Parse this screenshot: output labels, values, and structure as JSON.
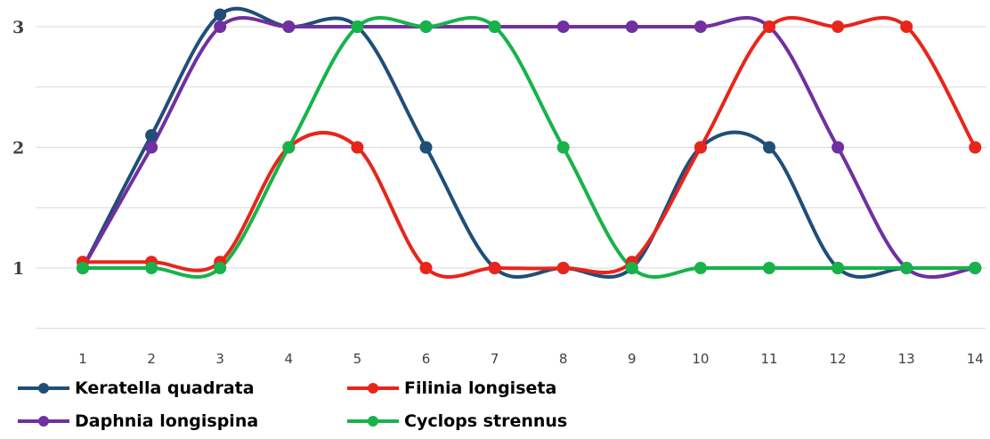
{
  "chart_data": {
    "type": "line",
    "title": "",
    "xlabel": "",
    "ylabel": "",
    "x": [
      1,
      2,
      3,
      4,
      5,
      6,
      7,
      8,
      9,
      10,
      11,
      12,
      13,
      14
    ],
    "xticks": [
      "1",
      "2",
      "3",
      "4",
      "5",
      "6",
      "7",
      "8",
      "9",
      "10",
      "11",
      "12",
      "13",
      "14"
    ],
    "yticks": [
      "1",
      "2",
      "3"
    ],
    "ylim": [
      0.5,
      3.3
    ],
    "grid": "horizontal",
    "smooth": true,
    "legend_position": "bottom",
    "series": [
      {
        "name": "Keratella quadrata",
        "color": "#1f4e79",
        "values": [
          1,
          2.1,
          3.1,
          3,
          3,
          2,
          1,
          1,
          1,
          2,
          2,
          1,
          1,
          1
        ]
      },
      {
        "name": "Filinia longiseta",
        "color": "#e8251b",
        "values": [
          1.05,
          1.05,
          1.05,
          2,
          2,
          1,
          1,
          1,
          1.05,
          2,
          3,
          3,
          3,
          2
        ]
      },
      {
        "name": "Daphnia longispina",
        "color": "#7030a0",
        "values": [
          1,
          2,
          3,
          3,
          3,
          3,
          3,
          3,
          3,
          3,
          3,
          2,
          1,
          1
        ]
      },
      {
        "name": "Cyclops strennus",
        "color": "#17b34a",
        "values": [
          1,
          1,
          1,
          2,
          3,
          3,
          3,
          2,
          1,
          1,
          1,
          1,
          1,
          1
        ]
      }
    ]
  }
}
